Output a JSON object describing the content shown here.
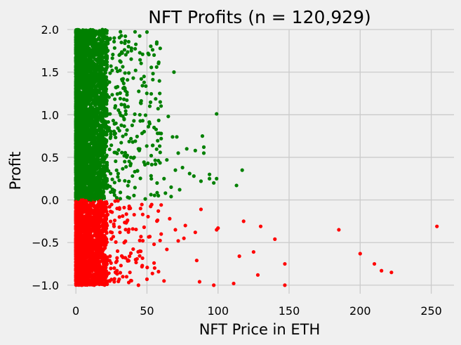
{
  "chart_data": {
    "type": "scatter",
    "title": "NFT Profits (n = 120,929)",
    "xlabel": "NFT Price in ETH",
    "ylabel": "Profit",
    "xlim": [
      -6,
      266
    ],
    "ylim": [
      -1.1,
      2.0
    ],
    "xticks": [
      0,
      50,
      100,
      150,
      200,
      250
    ],
    "xtick_labels": [
      "0",
      "50",
      "100",
      "150",
      "200",
      "250"
    ],
    "yticks": [
      -1.0,
      -0.5,
      0.0,
      0.5,
      1.0,
      1.5,
      2.0
    ],
    "ytick_labels": [
      "−1.0",
      "−0.5",
      "0.0",
      "0.5",
      "1.0",
      "1.5",
      "2.0"
    ],
    "grid": true,
    "colors": {
      "profit": "#008000",
      "loss": "#ff0000",
      "background": "#f0f0f0",
      "grid": "#cbcbcb"
    },
    "series": [
      {
        "color": "#008000",
        "points": [
          [
            50,
            1.97
          ],
          [
            55,
            1.7
          ],
          [
            69,
            1.5
          ],
          [
            42,
            1.52
          ],
          [
            37,
            1.8
          ],
          [
            59,
            1.25
          ],
          [
            48,
            1.38
          ],
          [
            45,
            1.0
          ],
          [
            51,
            0.86
          ],
          [
            55,
            0.85
          ],
          [
            60,
            0.78
          ],
          [
            68,
            0.74
          ],
          [
            71,
            0.74
          ],
          [
            72,
            0.55
          ],
          [
            78,
            0.6
          ],
          [
            84,
            0.58
          ],
          [
            89,
            0.75
          ],
          [
            90,
            0.62
          ],
          [
            90,
            0.55
          ],
          [
            99,
            1.01
          ],
          [
            65,
            0.98
          ],
          [
            60,
            0.72
          ],
          [
            70,
            0.35
          ],
          [
            75,
            0.38
          ],
          [
            80,
            0.31
          ],
          [
            83,
            0.28
          ],
          [
            88,
            0.22
          ],
          [
            94,
            0.3
          ],
          [
            94,
            0.25
          ],
          [
            97,
            0.2
          ],
          [
            99,
            0.25
          ],
          [
            117,
            0.35
          ],
          [
            113,
            0.17
          ],
          [
            41,
            0.5
          ],
          [
            44,
            0.6
          ],
          [
            62,
            0.25
          ],
          [
            58,
            0.05
          ],
          [
            31,
            1.63
          ],
          [
            27,
            1.9
          ],
          [
            21,
            1.72
          ],
          [
            34,
            1.32
          ],
          [
            52,
            1.1
          ],
          [
            47,
            0.93
          ],
          [
            56,
            0.42
          ],
          [
            67,
            0.15
          ],
          [
            73,
            0.12
          ],
          [
            46,
            1.42
          ],
          [
            32,
            1.12
          ],
          [
            36,
            0.82
          ],
          [
            40,
            0.68
          ],
          [
            53,
            0.52
          ],
          [
            64,
            0.47
          ],
          [
            63,
            0.08
          ],
          [
            67,
            0.04
          ]
        ]
      },
      {
        "color": "#ff0000",
        "points": [
          [
            254,
            -0.31
          ],
          [
            185,
            -0.35
          ],
          [
            200,
            -0.63
          ],
          [
            210,
            -0.75
          ],
          [
            215,
            -0.83
          ],
          [
            222,
            -0.85
          ],
          [
            147,
            -0.75
          ],
          [
            147,
            -1.0
          ],
          [
            140,
            -0.46
          ],
          [
            130,
            -0.31
          ],
          [
            128,
            -0.88
          ],
          [
            125,
            -0.61
          ],
          [
            118,
            -0.25
          ],
          [
            115,
            -0.66
          ],
          [
            111,
            -0.98
          ],
          [
            100,
            -0.33
          ],
          [
            99,
            -0.35
          ],
          [
            97,
            -1.0
          ],
          [
            87,
            -0.96
          ],
          [
            85,
            -0.71
          ],
          [
            88,
            -0.11
          ],
          [
            84,
            -0.38
          ],
          [
            76,
            -0.45
          ],
          [
            72,
            -0.48
          ],
          [
            77,
            -0.3
          ],
          [
            70,
            -0.35
          ],
          [
            66,
            -0.22
          ],
          [
            64,
            -0.58
          ],
          [
            58,
            -0.13
          ],
          [
            55,
            -0.52
          ],
          [
            52,
            -0.43
          ],
          [
            48,
            -0.32
          ],
          [
            47,
            -0.17
          ],
          [
            45,
            -0.6
          ],
          [
            42,
            -0.7
          ],
          [
            40,
            -0.34
          ],
          [
            36,
            -0.25
          ],
          [
            34,
            -0.5
          ],
          [
            31,
            -0.38
          ],
          [
            29,
            -0.1
          ],
          [
            27,
            -0.8
          ],
          [
            55,
            -0.74
          ],
          [
            60,
            -0.4
          ],
          [
            62,
            -0.95
          ],
          [
            50,
            -0.93
          ],
          [
            44,
            -1.0
          ],
          [
            38,
            -0.85
          ],
          [
            33,
            -0.9
          ],
          [
            27,
            -0.96
          ],
          [
            24,
            -0.66
          ],
          [
            22,
            -0.3
          ]
        ]
      }
    ],
    "notes_on_density": "Dense band of points near x in [0, 25] spanning the full y range; profit >= 0 drawn green, profit < 0 drawn red."
  }
}
